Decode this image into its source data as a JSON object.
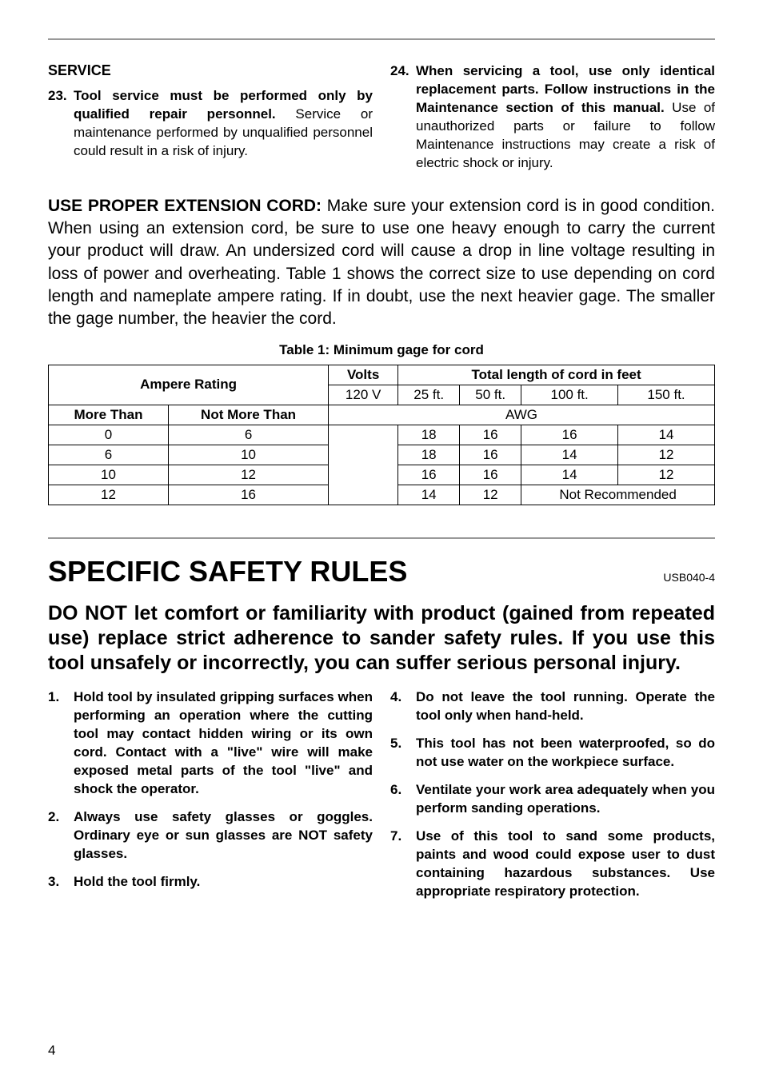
{
  "top": {
    "service_heading": "SERVICE",
    "items": [
      {
        "num": "23.",
        "bold": "Tool service must be performed only by qualified repair personnel.",
        "rest": " Service or maintenance performed by unqualified personnel could result in a risk of injury."
      },
      {
        "num": "24.",
        "bold": "When servicing a tool, use only identical replacement parts. Follow instructions in the Maintenance section of this manual.",
        "rest": " Use of unauthorized parts or failure to follow Maintenance instructions may create a risk of electric shock or injury."
      }
    ]
  },
  "ext_cord": {
    "lead_bold": "USE PROPER EXTENSION CORD:",
    "lead_rest": " Make sure your extension cord is in good condition. When using an extension cord, be sure to use one heavy enough to carry the current your product will draw. An undersized cord will cause a drop in line voltage resulting in loss of power and overheating. Table 1 shows the correct size to use depending on cord length and nameplate ampere rating. If in doubt, use the next heavier gage. The smaller the gage number, the heavier the cord."
  },
  "table": {
    "caption": "Table 1: Minimum gage for cord",
    "ampere_rating": "Ampere Rating",
    "volts": "Volts",
    "total_length": "Total length of cord in feet",
    "volt_val": "120 V",
    "len1": "25 ft.",
    "len2": "50 ft.",
    "len3": "100 ft.",
    "len4": "150 ft.",
    "more_than": "More Than",
    "not_more_than": "Not More Than",
    "awg": "AWG",
    "rows": [
      {
        "m": "0",
        "n": "6",
        "a": "18",
        "b": "16",
        "c": "16",
        "d": "14"
      },
      {
        "m": "6",
        "n": "10",
        "a": "18",
        "b": "16",
        "c": "14",
        "d": "12"
      },
      {
        "m": "10",
        "n": "12",
        "a": "16",
        "b": "16",
        "c": "14",
        "d": "12"
      },
      {
        "m": "12",
        "n": "16",
        "a": "14",
        "b": "12",
        "nr": "Not Recommended"
      }
    ]
  },
  "section": {
    "heading": "SPECIFIC SAFETY RULES",
    "code": "USB040-4",
    "lead": "DO NOT let comfort or familiarity with product (gained from repeated use) replace strict adherence to sander safety rules. If you use this tool unsafely or incorrectly, you can suffer serious personal injury."
  },
  "rules_left": [
    {
      "num": "1.",
      "text": "Hold tool by insulated gripping surfaces when performing an operation where the cutting tool may contact hidden wiring or its own cord. Contact with a \"live\" wire will make exposed metal parts of the tool \"live\" and shock the operator."
    },
    {
      "num": "2.",
      "text": "Always use safety glasses or goggles. Ordinary eye or sun glasses are NOT safety glasses."
    },
    {
      "num": "3.",
      "text": "Hold the tool firmly."
    }
  ],
  "rules_right": [
    {
      "num": "4.",
      "text": "Do not leave the tool running. Operate the tool only when hand-held."
    },
    {
      "num": "5.",
      "text": "This tool has not been waterproofed, so do not use water on the workpiece surface."
    },
    {
      "num": "6.",
      "text": "Ventilate your work area adequately when you perform sanding operations."
    },
    {
      "num": "7.",
      "text": "Use of this tool to sand some products, paints and wood could expose user to dust containing hazardous substances. Use appropriate respiratory protection."
    }
  ],
  "page_num": "4"
}
